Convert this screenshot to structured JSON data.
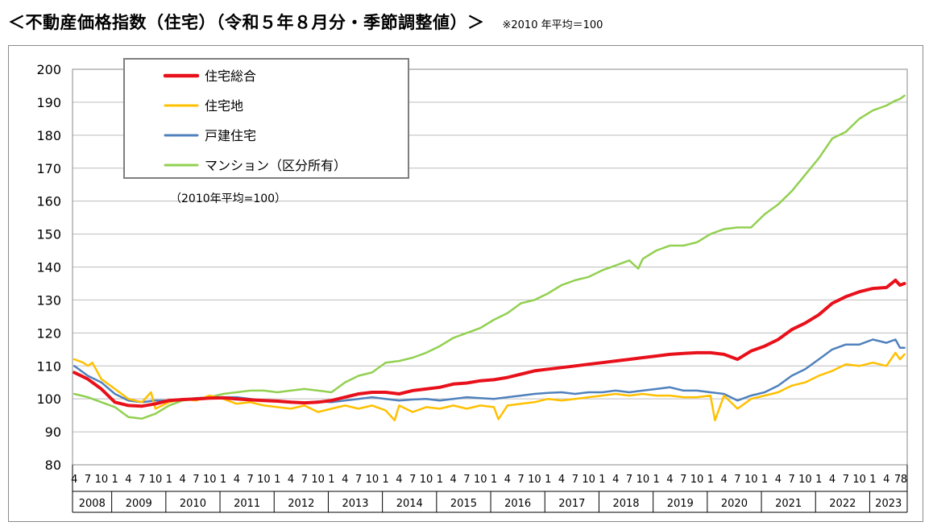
{
  "header": {
    "title": "＜不動産価格指数（住宅）（令和５年８月分・季節調整値）＞",
    "note": "※2010 年平均＝100"
  },
  "chart_data": {
    "type": "line",
    "annotation": "（2010年平均=100）",
    "ylim": [
      80,
      200
    ],
    "yticks": [
      80,
      90,
      100,
      110,
      120,
      130,
      140,
      150,
      160,
      170,
      180,
      190,
      200
    ],
    "grid": true,
    "legend_position": "top-left",
    "x_start": "2008-04",
    "x_end": "2023-08",
    "years": [
      "2008",
      "2009",
      "2010",
      "2011",
      "2012",
      "2013",
      "2014",
      "2015",
      "2016",
      "2017",
      "2018",
      "2019",
      "2020",
      "2021",
      "2022",
      "2023"
    ],
    "month_ticks": [
      "1",
      "4",
      "7",
      "10"
    ],
    "series": [
      {
        "name": "住宅総合",
        "color": "#e8101a",
        "width": 4,
        "points": [
          [
            "2008-04",
            108
          ],
          [
            "2008-07",
            106
          ],
          [
            "2008-10",
            103
          ],
          [
            "2009-01",
            99
          ],
          [
            "2009-04",
            98
          ],
          [
            "2009-07",
            97.8
          ],
          [
            "2009-10",
            98.5
          ],
          [
            "2010-01",
            99.5
          ],
          [
            "2010-04",
            99.8
          ],
          [
            "2010-07",
            100
          ],
          [
            "2010-10",
            100.2
          ],
          [
            "2011-01",
            100.3
          ],
          [
            "2011-04",
            100
          ],
          [
            "2011-07",
            99.7
          ],
          [
            "2011-10",
            99.5
          ],
          [
            "2012-01",
            99.3
          ],
          [
            "2012-04",
            99
          ],
          [
            "2012-07",
            98.8
          ],
          [
            "2012-10",
            99
          ],
          [
            "2013-01",
            99.5
          ],
          [
            "2013-04",
            100.5
          ],
          [
            "2013-07",
            101.5
          ],
          [
            "2013-10",
            102
          ],
          [
            "2014-01",
            102
          ],
          [
            "2014-04",
            101.5
          ],
          [
            "2014-07",
            102.5
          ],
          [
            "2014-10",
            103
          ],
          [
            "2015-01",
            103.5
          ],
          [
            "2015-04",
            104.5
          ],
          [
            "2015-07",
            104.8
          ],
          [
            "2015-10",
            105.5
          ],
          [
            "2016-01",
            105.8
          ],
          [
            "2016-04",
            106.5
          ],
          [
            "2016-07",
            107.5
          ],
          [
            "2016-10",
            108.5
          ],
          [
            "2017-01",
            109
          ],
          [
            "2017-04",
            109.5
          ],
          [
            "2017-07",
            110
          ],
          [
            "2017-10",
            110.5
          ],
          [
            "2018-01",
            111
          ],
          [
            "2018-04",
            111.5
          ],
          [
            "2018-07",
            112
          ],
          [
            "2018-10",
            112.5
          ],
          [
            "2019-01",
            113
          ],
          [
            "2019-04",
            113.5
          ],
          [
            "2019-07",
            113.8
          ],
          [
            "2019-10",
            114
          ],
          [
            "2020-01",
            114
          ],
          [
            "2020-04",
            113.5
          ],
          [
            "2020-07",
            112
          ],
          [
            "2020-10",
            114.5
          ],
          [
            "2021-01",
            116
          ],
          [
            "2021-04",
            118
          ],
          [
            "2021-07",
            121
          ],
          [
            "2021-10",
            123
          ],
          [
            "2022-01",
            125.5
          ],
          [
            "2022-04",
            129
          ],
          [
            "2022-07",
            131
          ],
          [
            "2022-10",
            132.5
          ],
          [
            "2023-01",
            133.5
          ],
          [
            "2023-04",
            133.8
          ],
          [
            "2023-06",
            136
          ],
          [
            "2023-07",
            134.5
          ],
          [
            "2023-08",
            135
          ]
        ]
      },
      {
        "name": "住宅地",
        "color": "#ffc000",
        "width": 2.5,
        "points": [
          [
            "2008-04",
            112
          ],
          [
            "2008-06",
            111
          ],
          [
            "2008-07",
            110
          ],
          [
            "2008-08",
            111
          ],
          [
            "2008-10",
            106
          ],
          [
            "2009-01",
            103
          ],
          [
            "2009-04",
            100
          ],
          [
            "2009-07",
            99
          ],
          [
            "2009-09",
            102
          ],
          [
            "2009-10",
            97
          ],
          [
            "2010-01",
            99
          ],
          [
            "2010-04",
            100
          ],
          [
            "2010-07",
            99.5
          ],
          [
            "2010-10",
            101
          ],
          [
            "2011-01",
            100
          ],
          [
            "2011-04",
            98.5
          ],
          [
            "2011-07",
            99
          ],
          [
            "2011-10",
            98
          ],
          [
            "2012-01",
            97.5
          ],
          [
            "2012-04",
            97
          ],
          [
            "2012-07",
            98
          ],
          [
            "2012-10",
            96
          ],
          [
            "2013-01",
            97
          ],
          [
            "2013-04",
            98
          ],
          [
            "2013-07",
            97
          ],
          [
            "2013-10",
            98
          ],
          [
            "2014-01",
            96.5
          ],
          [
            "2014-03",
            93.5
          ],
          [
            "2014-04",
            98
          ],
          [
            "2014-07",
            96
          ],
          [
            "2014-10",
            97.5
          ],
          [
            "2015-01",
            97
          ],
          [
            "2015-04",
            98
          ],
          [
            "2015-07",
            97
          ],
          [
            "2015-10",
            98
          ],
          [
            "2016-01",
            97.5
          ],
          [
            "2016-02",
            93.8
          ],
          [
            "2016-04",
            98
          ],
          [
            "2016-07",
            98.5
          ],
          [
            "2016-10",
            99
          ],
          [
            "2017-01",
            100
          ],
          [
            "2017-04",
            99.5
          ],
          [
            "2017-07",
            100
          ],
          [
            "2017-10",
            100.5
          ],
          [
            "2018-01",
            101
          ],
          [
            "2018-04",
            101.5
          ],
          [
            "2018-07",
            101
          ],
          [
            "2018-10",
            101.5
          ],
          [
            "2019-01",
            101
          ],
          [
            "2019-04",
            101
          ],
          [
            "2019-07",
            100.5
          ],
          [
            "2019-10",
            100.5
          ],
          [
            "2020-01",
            101
          ],
          [
            "2020-02",
            93.5
          ],
          [
            "2020-04",
            101
          ],
          [
            "2020-07",
            97
          ],
          [
            "2020-10",
            100
          ],
          [
            "2021-01",
            101
          ],
          [
            "2021-04",
            102
          ],
          [
            "2021-07",
            104
          ],
          [
            "2021-10",
            105
          ],
          [
            "2022-01",
            107
          ],
          [
            "2022-04",
            108.5
          ],
          [
            "2022-07",
            110.5
          ],
          [
            "2022-10",
            110
          ],
          [
            "2023-01",
            111
          ],
          [
            "2023-04",
            110
          ],
          [
            "2023-06",
            114
          ],
          [
            "2023-07",
            112
          ],
          [
            "2023-08",
            113.5
          ]
        ]
      },
      {
        "name": "戸建住宅",
        "color": "#4f81bd",
        "width": 2.5,
        "points": [
          [
            "2008-04",
            110
          ],
          [
            "2008-07",
            107
          ],
          [
            "2008-10",
            105
          ],
          [
            "2009-01",
            101.5
          ],
          [
            "2009-04",
            99.5
          ],
          [
            "2009-07",
            99
          ],
          [
            "2009-10",
            99.5
          ],
          [
            "2010-01",
            99.5
          ],
          [
            "2010-04",
            99.8
          ],
          [
            "2010-07",
            100.2
          ],
          [
            "2010-10",
            100.5
          ],
          [
            "2011-01",
            100.5
          ],
          [
            "2011-04",
            100.5
          ],
          [
            "2011-07",
            100
          ],
          [
            "2011-10",
            99.5
          ],
          [
            "2012-01",
            99.5
          ],
          [
            "2012-04",
            99
          ],
          [
            "2012-07",
            98.8
          ],
          [
            "2012-10",
            99.2
          ],
          [
            "2013-01",
            99
          ],
          [
            "2013-04",
            99.5
          ],
          [
            "2013-07",
            100
          ],
          [
            "2013-10",
            100.5
          ],
          [
            "2014-01",
            100
          ],
          [
            "2014-04",
            99.5
          ],
          [
            "2014-07",
            99.8
          ],
          [
            "2014-10",
            100
          ],
          [
            "2015-01",
            99.5
          ],
          [
            "2015-04",
            100
          ],
          [
            "2015-07",
            100.5
          ],
          [
            "2015-10",
            100.2
          ],
          [
            "2016-01",
            100
          ],
          [
            "2016-04",
            100.5
          ],
          [
            "2016-07",
            101
          ],
          [
            "2016-10",
            101.5
          ],
          [
            "2017-01",
            101.8
          ],
          [
            "2017-04",
            102
          ],
          [
            "2017-07",
            101.5
          ],
          [
            "2017-10",
            102
          ],
          [
            "2018-01",
            102
          ],
          [
            "2018-04",
            102.5
          ],
          [
            "2018-07",
            102
          ],
          [
            "2018-10",
            102.5
          ],
          [
            "2019-01",
            103
          ],
          [
            "2019-04",
            103.5
          ],
          [
            "2019-07",
            102.5
          ],
          [
            "2019-10",
            102.5
          ],
          [
            "2020-01",
            102
          ],
          [
            "2020-04",
            101.5
          ],
          [
            "2020-07",
            99.5
          ],
          [
            "2020-10",
            101
          ],
          [
            "2021-01",
            102
          ],
          [
            "2021-04",
            104
          ],
          [
            "2021-07",
            107
          ],
          [
            "2021-10",
            109
          ],
          [
            "2022-01",
            112
          ],
          [
            "2022-04",
            115
          ],
          [
            "2022-07",
            116.5
          ],
          [
            "2022-10",
            116.5
          ],
          [
            "2023-01",
            118
          ],
          [
            "2023-04",
            117
          ],
          [
            "2023-06",
            118
          ],
          [
            "2023-07",
            115.5
          ],
          [
            "2023-08",
            115.5
          ]
        ]
      },
      {
        "name": "マンション（区分所有）",
        "color": "#92d050",
        "width": 2.5,
        "points": [
          [
            "2008-04",
            101.5
          ],
          [
            "2008-07",
            100.5
          ],
          [
            "2008-10",
            99
          ],
          [
            "2009-01",
            97.5
          ],
          [
            "2009-04",
            94.5
          ],
          [
            "2009-07",
            94
          ],
          [
            "2009-10",
            95.5
          ],
          [
            "2010-01",
            98
          ],
          [
            "2010-04",
            99.5
          ],
          [
            "2010-07",
            100
          ],
          [
            "2010-10",
            100.5
          ],
          [
            "2011-01",
            101.5
          ],
          [
            "2011-04",
            102
          ],
          [
            "2011-07",
            102.5
          ],
          [
            "2011-10",
            102.5
          ],
          [
            "2012-01",
            102
          ],
          [
            "2012-04",
            102.5
          ],
          [
            "2012-07",
            103
          ],
          [
            "2012-10",
            102.5
          ],
          [
            "2013-01",
            102
          ],
          [
            "2013-04",
            105
          ],
          [
            "2013-07",
            107
          ],
          [
            "2013-10",
            108
          ],
          [
            "2014-01",
            111
          ],
          [
            "2014-04",
            111.5
          ],
          [
            "2014-07",
            112.5
          ],
          [
            "2014-10",
            114
          ],
          [
            "2015-01",
            116
          ],
          [
            "2015-04",
            118.5
          ],
          [
            "2015-07",
            120
          ],
          [
            "2015-10",
            121.5
          ],
          [
            "2016-01",
            124
          ],
          [
            "2016-04",
            126
          ],
          [
            "2016-07",
            129
          ],
          [
            "2016-10",
            130
          ],
          [
            "2017-01",
            132
          ],
          [
            "2017-04",
            134.5
          ],
          [
            "2017-07",
            136
          ],
          [
            "2017-10",
            137
          ],
          [
            "2018-01",
            139
          ],
          [
            "2018-04",
            140.5
          ],
          [
            "2018-07",
            142
          ],
          [
            "2018-09",
            139.5
          ],
          [
            "2018-10",
            142.5
          ],
          [
            "2019-01",
            145
          ],
          [
            "2019-04",
            146.5
          ],
          [
            "2019-07",
            146.5
          ],
          [
            "2019-10",
            147.5
          ],
          [
            "2020-01",
            150
          ],
          [
            "2020-04",
            151.5
          ],
          [
            "2020-07",
            152
          ],
          [
            "2020-10",
            152
          ],
          [
            "2021-01",
            156
          ],
          [
            "2021-04",
            159
          ],
          [
            "2021-07",
            163
          ],
          [
            "2021-10",
            168
          ],
          [
            "2022-01",
            173
          ],
          [
            "2022-04",
            179
          ],
          [
            "2022-07",
            181
          ],
          [
            "2022-10",
            185
          ],
          [
            "2023-01",
            187.5
          ],
          [
            "2023-04",
            189
          ],
          [
            "2023-06",
            190.5
          ],
          [
            "2023-07",
            191
          ],
          [
            "2023-08",
            192
          ]
        ]
      }
    ]
  }
}
